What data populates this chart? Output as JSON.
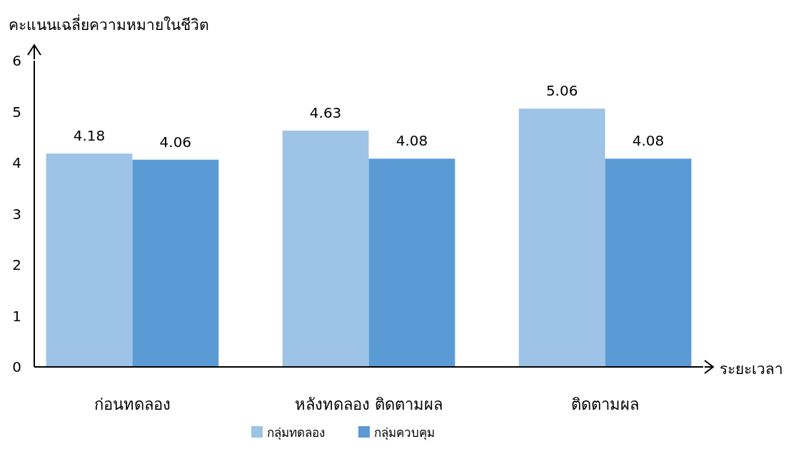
{
  "chart_data": {
    "type": "bar",
    "ylabel": "คะแนนเฉลี่ยความหมายในชีวิต",
    "xlabel": "ระยะเวลา",
    "categories": [
      "ก่อนทดลอง",
      "หลังทดลอง ติดตามผล",
      "ติดตามผล"
    ],
    "series": [
      {
        "name": "กลุ่มทดลอง",
        "color": "#9dc3e6",
        "values": [
          4.18,
          4.63,
          5.06
        ]
      },
      {
        "name": "กลุ่มควบคุม",
        "color": "#5b9bd5",
        "values": [
          4.06,
          4.08,
          4.08
        ]
      }
    ],
    "ylim": [
      0,
      6
    ],
    "yticks": [
      0,
      1,
      2,
      3,
      4,
      5,
      6
    ],
    "data_labels": true,
    "legend": "bottom"
  }
}
